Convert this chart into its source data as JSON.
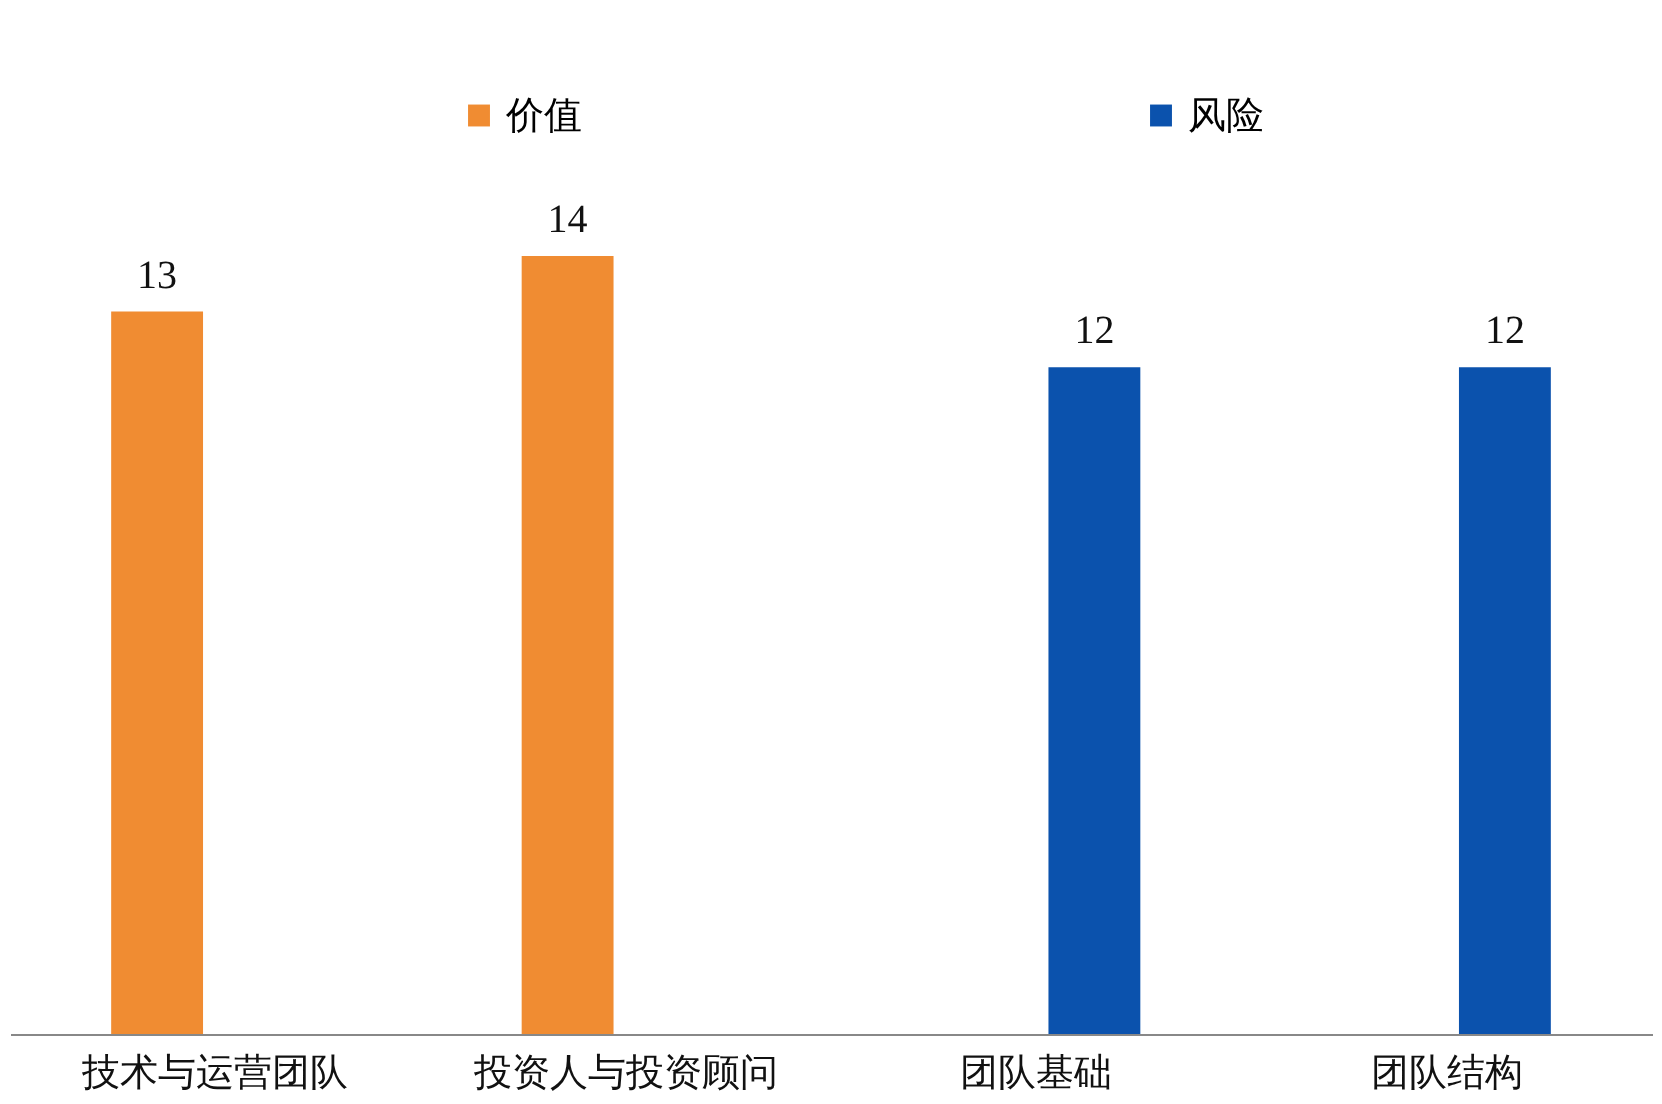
{
  "chart_data": {
    "type": "bar",
    "categories": [
      "技术与运营团队",
      "投资人与投资顾问",
      "团队基础",
      "团队结构"
    ],
    "series": [
      {
        "name": "价值",
        "color": "#f08c32",
        "values": [
          13,
          14,
          null,
          null
        ]
      },
      {
        "name": "风险",
        "color": "#0b52ad",
        "values": [
          null,
          null,
          12,
          12
        ]
      }
    ],
    "tick_labels": "x",
    "data_labels": true,
    "legend": "top",
    "grid": false
  }
}
